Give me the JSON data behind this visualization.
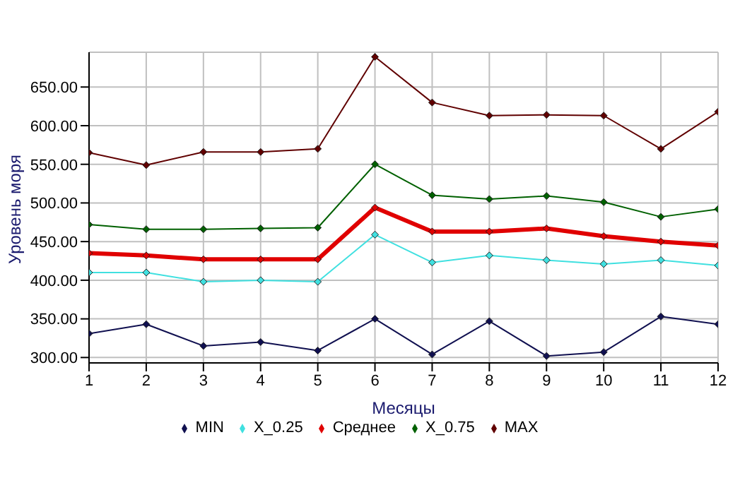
{
  "chart_data": {
    "type": "line",
    "xlabel": "Месяцы",
    "ylabel": "Уровень моря",
    "x": [
      1,
      2,
      3,
      4,
      5,
      6,
      7,
      8,
      9,
      10,
      11,
      12
    ],
    "series": [
      {
        "name": "MIN",
        "color": "#101050",
        "values": [
          331,
          343,
          315,
          320,
          309,
          350,
          304,
          347,
          302,
          307,
          353,
          343
        ]
      },
      {
        "name": "X_0.25",
        "color": "#40e0e0",
        "values": [
          410,
          410,
          398,
          400,
          398,
          459,
          423,
          432,
          426,
          421,
          426,
          419
        ]
      },
      {
        "name": "Среднее",
        "color": "#e00000",
        "values": [
          435,
          432,
          427,
          427,
          427,
          494,
          463,
          463,
          467,
          457,
          450,
          445
        ]
      },
      {
        "name": "X_0.75",
        "color": "#006000",
        "values": [
          472,
          466,
          466,
          467,
          468,
          550,
          510,
          505,
          509,
          501,
          482,
          492
        ]
      },
      {
        "name": "MAX",
        "color": "#600000",
        "values": [
          565,
          549,
          566,
          566,
          570,
          689,
          630,
          613,
          614,
          613,
          570,
          618
        ]
      }
    ],
    "xlim": [
      1,
      12
    ],
    "xticks": [
      1,
      2,
      3,
      4,
      5,
      6,
      7,
      8,
      9,
      10,
      11,
      12
    ],
    "ylim": [
      293,
      695
    ],
    "yticks": [
      {
        "value": 300,
        "label": "300.00"
      },
      {
        "value": 350,
        "label": "350.00"
      },
      {
        "value": 400,
        "label": "400.00"
      },
      {
        "value": 450,
        "label": "450.00"
      },
      {
        "value": 500,
        "label": "500.00"
      },
      {
        "value": 550,
        "label": "550.00"
      },
      {
        "value": 600,
        "label": "600.00"
      },
      {
        "value": 650,
        "label": "650.00"
      }
    ],
    "grid": true,
    "legend": "bottom",
    "marker": "diamond",
    "line_style": "solid"
  }
}
